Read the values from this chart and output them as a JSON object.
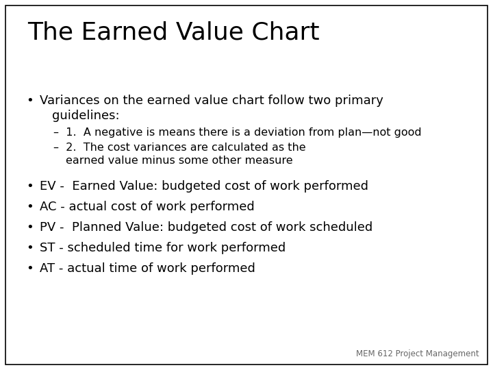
{
  "title": "The Earned Value Chart",
  "background_color": "#ffffff",
  "border_color": "#000000",
  "title_fontsize": 26,
  "body_fontsize": 13,
  "sub_fontsize": 11.5,
  "footer_fontsize": 8.5,
  "text_color": "#000000",
  "footer_color": "#666666",
  "bullet_char": "•",
  "sub1_text": "–  1.  A negative is means there is a deviation from plan—not good",
  "sub2_line1": "–  2.  The cost variances are calculated as the",
  "sub2_line2": "earned value minus some other measure",
  "bullet2_text": "EV -  Earned Value: budgeted cost of work performed",
  "bullet3_text": "AC - actual cost of work performed",
  "bullet4_text": "PV -  Planned Value: budgeted cost of work scheduled",
  "bullet5_text": "ST - scheduled time for work performed",
  "bullet6_text": "AT - actual time of work performed",
  "footer_text": "MEM 612 Project Management"
}
